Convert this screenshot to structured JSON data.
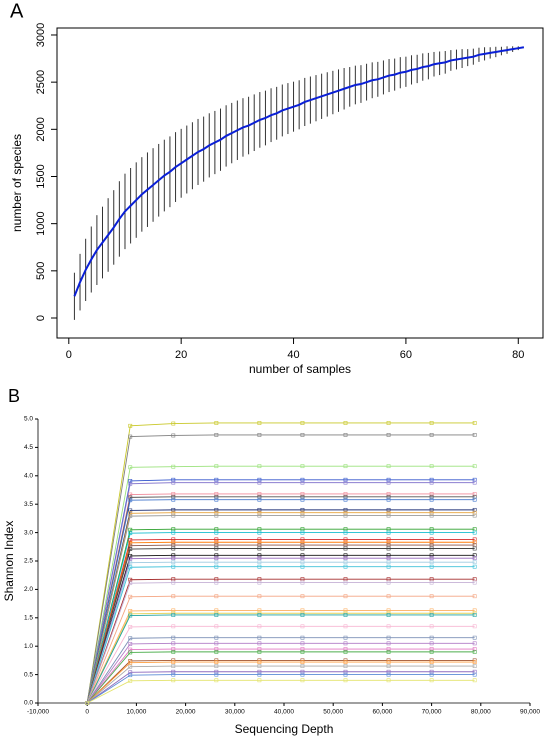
{
  "chart_data": [
    {
      "type": "line",
      "label": "A",
      "xlabel": "number of samples",
      "ylabel": "number of species",
      "x": [
        1,
        2,
        3,
        4,
        5,
        6,
        7,
        8,
        9,
        10,
        11,
        12,
        13,
        14,
        15,
        16,
        17,
        18,
        19,
        20,
        21,
        22,
        23,
        24,
        25,
        26,
        27,
        28,
        29,
        30,
        31,
        32,
        33,
        34,
        35,
        36,
        37,
        38,
        39,
        40,
        41,
        42,
        43,
        44,
        45,
        46,
        47,
        48,
        49,
        50,
        51,
        52,
        53,
        54,
        55,
        56,
        57,
        58,
        59,
        60,
        61,
        62,
        63,
        64,
        65,
        66,
        67,
        68,
        69,
        70,
        71,
        72,
        73,
        74,
        75,
        76,
        77,
        78,
        79,
        80,
        81
      ],
      "series": [
        {
          "color": "#0a1fd6",
          "error_color": "#333333",
          "values": [
            230,
            380,
            510,
            620,
            720,
            800,
            880,
            960,
            1050,
            1130,
            1190,
            1250,
            1310,
            1360,
            1410,
            1460,
            1510,
            1550,
            1600,
            1640,
            1680,
            1720,
            1760,
            1790,
            1830,
            1860,
            1890,
            1930,
            1960,
            1990,
            2020,
            2040,
            2070,
            2100,
            2120,
            2150,
            2170,
            2200,
            2220,
            2240,
            2260,
            2290,
            2310,
            2330,
            2350,
            2370,
            2390,
            2410,
            2430,
            2450,
            2470,
            2480,
            2500,
            2520,
            2530,
            2550,
            2570,
            2580,
            2600,
            2610,
            2630,
            2640,
            2660,
            2670,
            2690,
            2700,
            2710,
            2730,
            2740,
            2750,
            2760,
            2770,
            2790,
            2800,
            2810,
            2820,
            2830,
            2840,
            2850,
            2860,
            2870
          ],
          "errors": [
            250,
            300,
            330,
            350,
            370,
            380,
            390,
            395,
            400,
            400,
            400,
            400,
            395,
            395,
            390,
            385,
            380,
            375,
            370,
            365,
            360,
            355,
            350,
            345,
            340,
            335,
            330,
            325,
            320,
            315,
            310,
            305,
            300,
            295,
            290,
            285,
            280,
            275,
            270,
            265,
            260,
            255,
            250,
            245,
            240,
            235,
            230,
            225,
            220,
            210,
            205,
            200,
            195,
            190,
            185,
            180,
            175,
            170,
            165,
            160,
            155,
            150,
            145,
            140,
            130,
            125,
            120,
            110,
            105,
            100,
            90,
            85,
            75,
            70,
            60,
            55,
            45,
            40,
            30,
            20,
            0
          ]
        }
      ],
      "xlim": [
        -2.1,
        84.4
      ],
      "ylim": [
        -212,
        3074
      ],
      "xticks": [
        0,
        20,
        40,
        60,
        80
      ],
      "yticks": [
        0,
        500,
        1000,
        1500,
        2000,
        2500,
        3000
      ],
      "frame": true
    },
    {
      "type": "line",
      "label": "B",
      "xlabel": "Sequencing Depth",
      "ylabel": "Shannon Index",
      "markers": true,
      "x": [
        0,
        8750,
        17500,
        26250,
        35000,
        43750,
        52500,
        61250,
        70000,
        78750
      ],
      "series": [
        {
          "color": "#c9c829",
          "values": [
            0,
            4.88,
            4.92,
            4.93,
            4.93,
            4.93,
            4.93,
            4.93,
            4.93,
            4.93
          ]
        },
        {
          "color": "#7f7f7f",
          "values": [
            0,
            4.69,
            4.71,
            4.72,
            4.72,
            4.72,
            4.72,
            4.72,
            4.72,
            4.72
          ]
        },
        {
          "color": "#9be27c",
          "values": [
            0,
            4.15,
            4.16,
            4.17,
            4.17,
            4.17,
            4.17,
            4.17,
            4.17,
            4.17
          ]
        },
        {
          "color": "#3355cc",
          "values": [
            0,
            3.91,
            3.93,
            3.93,
            3.93,
            3.93,
            3.93,
            3.93,
            3.93,
            3.93
          ]
        },
        {
          "color": "#8c7fd0",
          "values": [
            0,
            3.86,
            3.88,
            3.88,
            3.88,
            3.88,
            3.88,
            3.88,
            3.88,
            3.88
          ]
        },
        {
          "color": "#f08a9a",
          "values": [
            0,
            3.67,
            3.68,
            3.68,
            3.68,
            3.68,
            3.68,
            3.68,
            3.68,
            3.68
          ]
        },
        {
          "color": "#555555",
          "values": [
            0,
            3.62,
            3.63,
            3.63,
            3.63,
            3.63,
            3.63,
            3.63,
            3.63,
            3.63
          ]
        },
        {
          "color": "#4477cc",
          "values": [
            0,
            3.57,
            3.58,
            3.58,
            3.58,
            3.58,
            3.58,
            3.58,
            3.58,
            3.58
          ]
        },
        {
          "color": "#223377",
          "values": [
            0,
            3.39,
            3.4,
            3.4,
            3.4,
            3.4,
            3.4,
            3.4,
            3.4,
            3.4
          ]
        },
        {
          "color": "#e6a23c",
          "values": [
            0,
            3.34,
            3.35,
            3.35,
            3.35,
            3.35,
            3.35,
            3.35,
            3.35,
            3.35
          ]
        },
        {
          "color": "#999999",
          "values": [
            0,
            3.29,
            3.3,
            3.3,
            3.3,
            3.3,
            3.3,
            3.3,
            3.3,
            3.3
          ]
        },
        {
          "color": "#2ca02c",
          "values": [
            0,
            3.05,
            3.06,
            3.06,
            3.06,
            3.06,
            3.06,
            3.06,
            3.06,
            3.06
          ]
        },
        {
          "color": "#17becf",
          "values": [
            0,
            2.99,
            3,
            3,
            3,
            3,
            3,
            3,
            3,
            3
          ]
        },
        {
          "color": "#d62728",
          "values": [
            0,
            2.87,
            2.88,
            2.88,
            2.88,
            2.88,
            2.88,
            2.88,
            2.88,
            2.88
          ]
        },
        {
          "color": "#ff7f0e",
          "values": [
            0,
            2.82,
            2.83,
            2.83,
            2.83,
            2.83,
            2.83,
            2.83,
            2.83,
            2.83
          ]
        },
        {
          "color": "#8c564b",
          "values": [
            0,
            2.77,
            2.78,
            2.78,
            2.78,
            2.78,
            2.78,
            2.78,
            2.78,
            2.78
          ]
        },
        {
          "color": "#444444",
          "values": [
            0,
            2.71,
            2.72,
            2.72,
            2.72,
            2.72,
            2.72,
            2.72,
            2.72,
            2.72
          ]
        },
        {
          "color": "#111111",
          "values": [
            0,
            2.59,
            2.6,
            2.6,
            2.6,
            2.6,
            2.6,
            2.6,
            2.6,
            2.6
          ]
        },
        {
          "color": "#9467bd",
          "values": [
            0,
            2.54,
            2.55,
            2.55,
            2.55,
            2.55,
            2.55,
            2.55,
            2.55,
            2.55
          ]
        },
        {
          "color": "#9ecae1",
          "values": [
            0,
            2.47,
            2.48,
            2.48,
            2.48,
            2.48,
            2.48,
            2.48,
            2.48,
            2.48
          ]
        },
        {
          "color": "#3fc1d9",
          "values": [
            0,
            2.39,
            2.4,
            2.4,
            2.4,
            2.4,
            2.4,
            2.4,
            2.4,
            2.4
          ]
        },
        {
          "color": "#a52a2a",
          "values": [
            0,
            2.17,
            2.18,
            2.18,
            2.18,
            2.18,
            2.18,
            2.18,
            2.18,
            2.18
          ]
        },
        {
          "color": "#c5b0d5",
          "values": [
            0,
            2.11,
            2.12,
            2.12,
            2.12,
            2.12,
            2.12,
            2.12,
            2.12,
            2.12
          ]
        },
        {
          "color": "#f4a582",
          "values": [
            0,
            1.87,
            1.88,
            1.88,
            1.88,
            1.88,
            1.88,
            1.88,
            1.88,
            1.88
          ]
        },
        {
          "color": "#fdae61",
          "values": [
            0,
            1.62,
            1.63,
            1.63,
            1.63,
            1.63,
            1.63,
            1.63,
            1.63,
            1.63
          ]
        },
        {
          "color": "#e5d35a",
          "values": [
            0,
            1.57,
            1.58,
            1.58,
            1.58,
            1.58,
            1.58,
            1.58,
            1.58,
            1.58
          ]
        },
        {
          "color": "#1fa3a3",
          "values": [
            0,
            1.54,
            1.55,
            1.55,
            1.55,
            1.55,
            1.55,
            1.55,
            1.55,
            1.55
          ]
        },
        {
          "color": "#f7b6d2",
          "values": [
            0,
            1.34,
            1.35,
            1.35,
            1.35,
            1.35,
            1.35,
            1.35,
            1.35,
            1.35
          ]
        },
        {
          "color": "#7b8fb5",
          "values": [
            0,
            1.14,
            1.15,
            1.15,
            1.15,
            1.15,
            1.15,
            1.15,
            1.15,
            1.15
          ]
        },
        {
          "color": "#b07cc6",
          "values": [
            0,
            1.04,
            1.05,
            1.05,
            1.05,
            1.05,
            1.05,
            1.05,
            1.05,
            1.05
          ]
        },
        {
          "color": "#e377c2",
          "values": [
            0,
            0.94,
            0.95,
            0.95,
            0.95,
            0.95,
            0.95,
            0.95,
            0.95,
            0.95
          ]
        },
        {
          "color": "#4cae4c",
          "values": [
            0,
            0.89,
            0.9,
            0.9,
            0.9,
            0.9,
            0.9,
            0.9,
            0.9,
            0.9
          ]
        },
        {
          "color": "#a0522d",
          "values": [
            0,
            0.74,
            0.75,
            0.75,
            0.75,
            0.75,
            0.75,
            0.75,
            0.75,
            0.75
          ]
        },
        {
          "color": "#ff9f40",
          "values": [
            0,
            0.71,
            0.72,
            0.72,
            0.72,
            0.72,
            0.72,
            0.72,
            0.72,
            0.72
          ]
        },
        {
          "color": "#aaaaaa",
          "values": [
            0,
            0.64,
            0.65,
            0.65,
            0.65,
            0.65,
            0.65,
            0.65,
            0.65,
            0.65
          ]
        },
        {
          "color": "#8e6bbf",
          "values": [
            0,
            0.54,
            0.55,
            0.55,
            0.55,
            0.55,
            0.55,
            0.55,
            0.55,
            0.55
          ]
        },
        {
          "color": "#5b8bd6",
          "values": [
            0,
            0.49,
            0.5,
            0.5,
            0.5,
            0.5,
            0.5,
            0.5,
            0.5,
            0.5
          ]
        },
        {
          "color": "#e3e36b",
          "values": [
            0,
            0.39,
            0.4,
            0.4,
            0.4,
            0.4,
            0.4,
            0.4,
            0.4,
            0.4
          ]
        }
      ],
      "xlim": [
        -10000,
        90000
      ],
      "ylim": [
        0,
        5
      ],
      "xticks": [
        {
          "value": -10000,
          "label": "-10,000"
        },
        0,
        {
          "value": 10000,
          "label": "10,000"
        },
        {
          "value": 20000,
          "label": "20,000"
        },
        {
          "value": 30000,
          "label": "30,000"
        },
        {
          "value": 40000,
          "label": "40,000"
        },
        {
          "value": 50000,
          "label": "50,000"
        },
        {
          "value": 60000,
          "label": "60,000"
        },
        {
          "value": 70000,
          "label": "70,000"
        },
        {
          "value": 80000,
          "label": "80,000"
        },
        {
          "value": 90000,
          "label": "90,000"
        }
      ],
      "yticks": [
        {
          "value": 0,
          "label": "0.0"
        },
        0.5,
        {
          "value": 1,
          "label": "1.0"
        },
        1.5,
        {
          "value": 2,
          "label": "2.0"
        },
        2.5,
        {
          "value": 3,
          "label": "3.0"
        },
        3.5,
        {
          "value": 4,
          "label": "4.0"
        },
        4.5,
        {
          "value": 5,
          "label": "5.0"
        }
      ],
      "frame": false
    }
  ]
}
